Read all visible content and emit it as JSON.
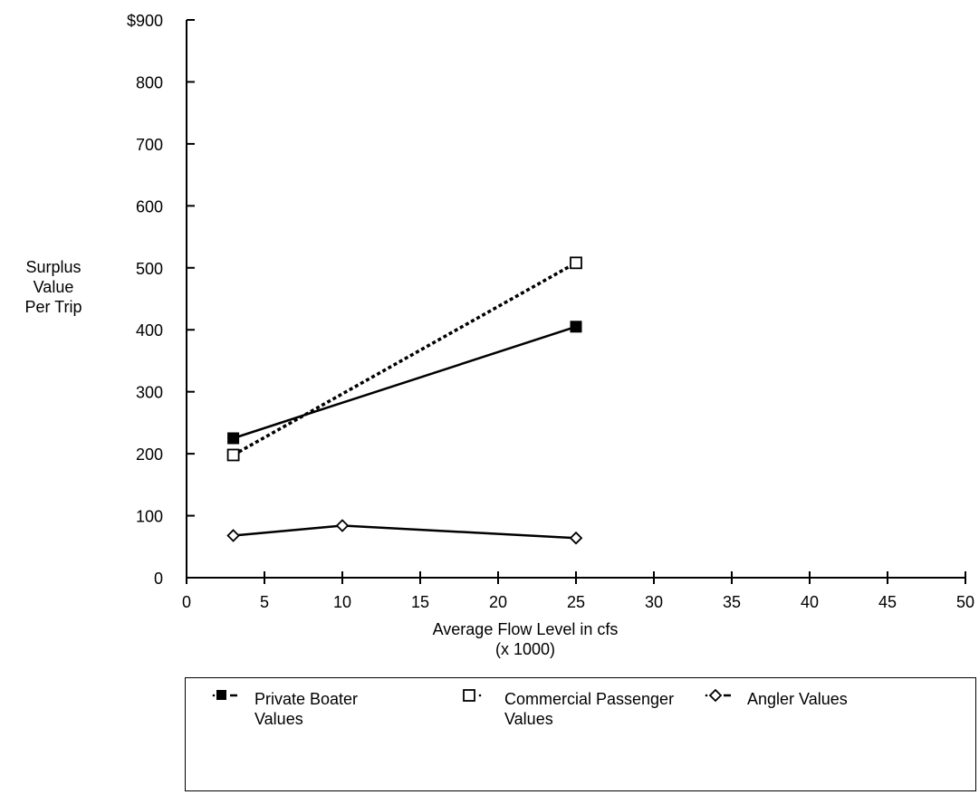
{
  "chart_data": {
    "type": "line",
    "ylabel": [
      "Surplus",
      "Value",
      "Per Trip"
    ],
    "xlabel": [
      "Average Flow Level in cfs",
      "(x  1000)"
    ],
    "ylim": [
      0,
      900
    ],
    "xlim": [
      0,
      50
    ],
    "y_ticks": [
      "0",
      "100",
      "200",
      "300",
      "400",
      "500",
      "600",
      "700",
      "800",
      "$900"
    ],
    "y_tick_values": [
      0,
      100,
      200,
      300,
      400,
      500,
      600,
      700,
      800,
      900
    ],
    "x_ticks": [
      "0",
      "5",
      "10",
      "15",
      "20",
      "25",
      "30",
      "35",
      "40",
      "45",
      "50"
    ],
    "x_tick_values": [
      0,
      5,
      10,
      15,
      20,
      25,
      30,
      35,
      40,
      45,
      50
    ],
    "grid": false,
    "legend_position": "bottom",
    "series": [
      {
        "name": "Private  Boater Values",
        "marker": "filled-square",
        "line": "solid",
        "x": [
          3,
          25
        ],
        "y": [
          225,
          405
        ]
      },
      {
        "name": "Commercial Passenger Values",
        "marker": "open-square",
        "line": "dotted",
        "x": [
          3,
          25
        ],
        "y": [
          198,
          508
        ]
      },
      {
        "name": "Angler Values",
        "marker": "open-diamond",
        "line": "solid",
        "x": [
          3,
          10,
          25
        ],
        "y": [
          68,
          84,
          64
        ]
      }
    ]
  }
}
